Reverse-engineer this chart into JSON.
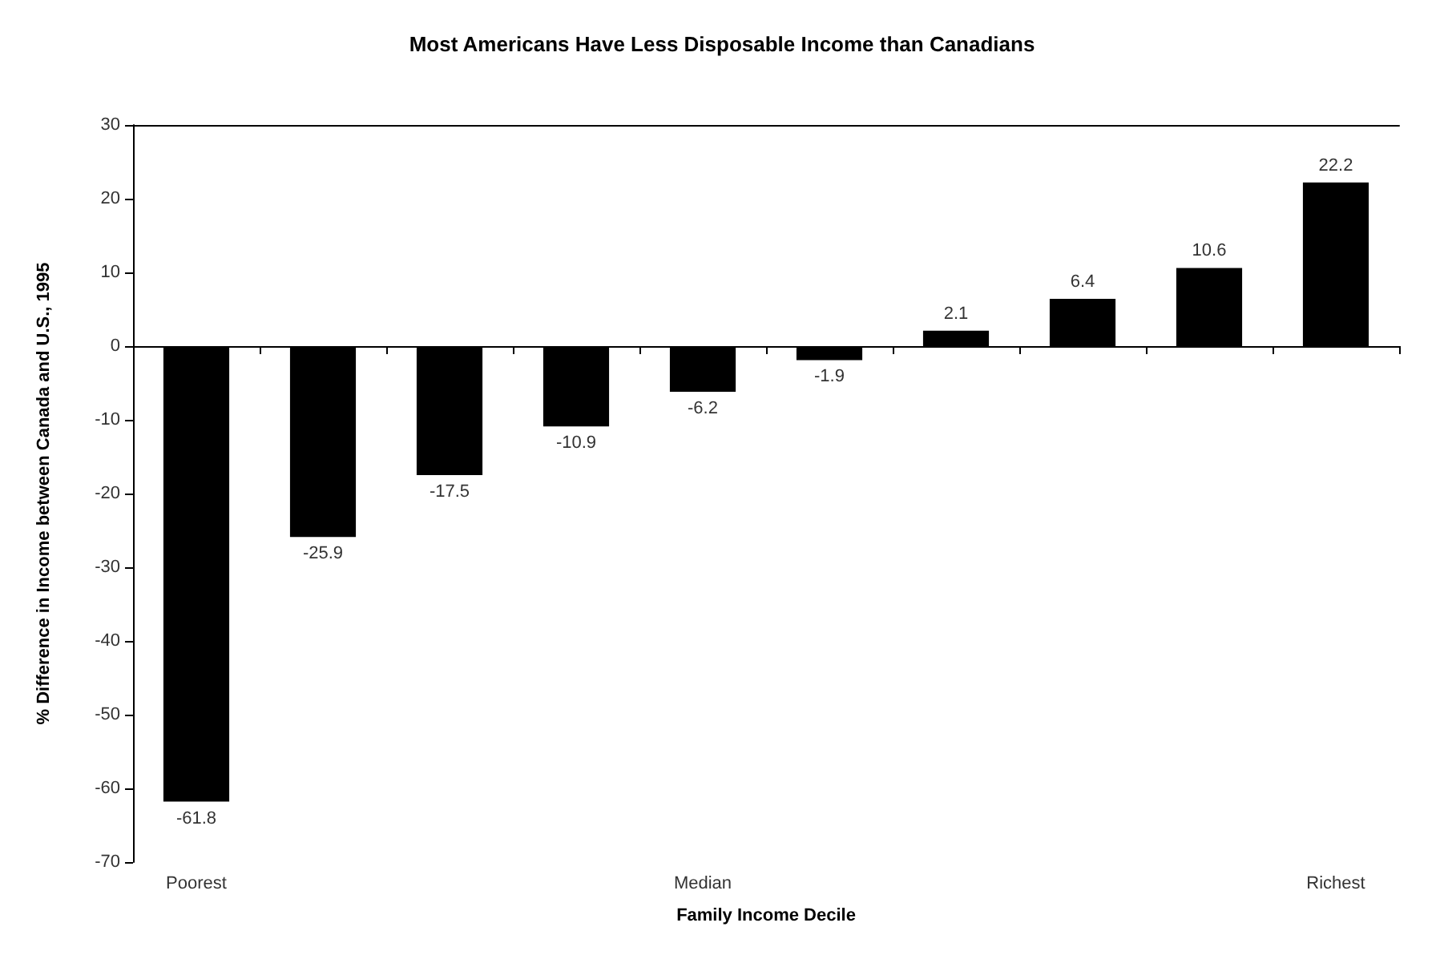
{
  "chart_data": {
    "type": "bar",
    "title": "Most Americans Have Less Disposable Income than Canadians",
    "xlabel": "Family Income Decile",
    "ylabel": "% Difference in Income between Canada and U.S., 1995",
    "categories": [
      "Poorest",
      null,
      null,
      null,
      "Median",
      null,
      null,
      null,
      null,
      "Richest"
    ],
    "values": [
      -61.8,
      -25.9,
      -17.5,
      -10.9,
      -6.2,
      -1.9,
      2.1,
      6.4,
      10.6,
      22.2
    ],
    "color": "#000000",
    "ylim": [
      -70,
      30
    ],
    "yticks": [
      -70,
      -60,
      -50,
      -40,
      -30,
      -20,
      -10,
      0,
      10,
      20,
      30
    ],
    "data_labels": true
  }
}
